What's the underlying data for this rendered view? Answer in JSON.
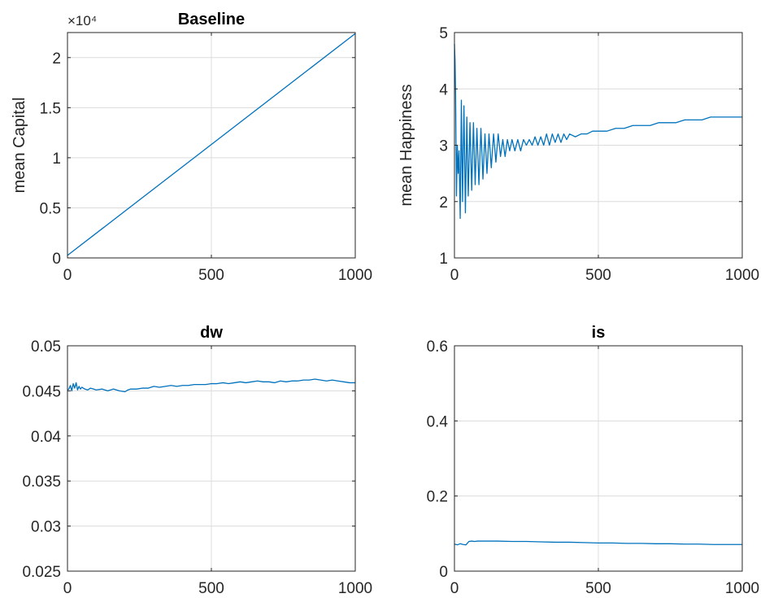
{
  "figure": {
    "background": "#ffffff",
    "line_color": "#0072bd",
    "grid_color": "#dcdcdc",
    "axis_color": "#262626"
  },
  "chart_data": [
    {
      "type": "line",
      "title": "Baseline",
      "xlabel": "",
      "ylabel": "mean Capital",
      "xlim": [
        0,
        1000
      ],
      "ylim": [
        0,
        22500
      ],
      "xticks": [
        0,
        500,
        1000
      ],
      "xtick_labels": [
        "0",
        "500",
        "1000"
      ],
      "yticks": [
        0,
        5000,
        10000,
        15000,
        20000
      ],
      "ytick_labels": [
        "0",
        "0.5",
        "1",
        "1.5",
        "2"
      ],
      "y_exponent_label": "×10⁴",
      "grid": true,
      "series": [
        {
          "x": [
            0,
            1000
          ],
          "y": [
            250,
            22400
          ]
        }
      ]
    },
    {
      "type": "line",
      "title": "",
      "xlabel": "",
      "ylabel": "mean Happiness",
      "xlim": [
        0,
        1000
      ],
      "ylim": [
        1,
        5
      ],
      "xticks": [
        0,
        500,
        1000
      ],
      "xtick_labels": [
        "0",
        "500",
        "1000"
      ],
      "yticks": [
        1,
        2,
        3,
        4,
        5
      ],
      "ytick_labels": [
        "1",
        "2",
        "3",
        "4",
        "5"
      ],
      "grid": true,
      "series": [
        {
          "x": [
            0,
            2,
            4,
            7,
            10,
            13,
            16,
            20,
            24,
            28,
            33,
            38,
            43,
            48,
            54,
            60,
            66,
            72,
            78,
            85,
            92,
            99,
            106,
            113,
            120,
            128,
            136,
            144,
            152,
            160,
            168,
            176,
            184,
            192,
            200,
            210,
            220,
            230,
            240,
            250,
            260,
            270,
            280,
            290,
            300,
            310,
            320,
            330,
            340,
            350,
            360,
            370,
            380,
            390,
            400,
            420,
            440,
            460,
            480,
            500,
            530,
            560,
            590,
            620,
            650,
            680,
            710,
            740,
            770,
            800,
            830,
            860,
            890,
            920,
            950,
            980,
            1000
          ],
          "y": [
            4.8,
            4.5,
            3.9,
            2.1,
            3.0,
            2.5,
            2.9,
            1.7,
            3.8,
            2.0,
            3.7,
            1.8,
            3.5,
            2.1,
            3.4,
            2.2,
            3.4,
            2.3,
            3.3,
            2.3,
            3.3,
            2.4,
            3.2,
            2.5,
            3.2,
            2.6,
            3.2,
            2.7,
            3.2,
            2.8,
            3.1,
            2.8,
            3.1,
            2.9,
            3.1,
            2.9,
            3.1,
            2.9,
            3.1,
            3.0,
            3.1,
            3.0,
            3.15,
            3.0,
            3.15,
            3.0,
            3.2,
            3.0,
            3.2,
            3.05,
            3.2,
            3.05,
            3.2,
            3.1,
            3.2,
            3.15,
            3.2,
            3.2,
            3.25,
            3.25,
            3.25,
            3.3,
            3.3,
            3.35,
            3.35,
            3.35,
            3.4,
            3.4,
            3.4,
            3.45,
            3.45,
            3.45,
            3.5,
            3.5,
            3.5,
            3.5,
            3.5
          ]
        }
      ]
    },
    {
      "type": "line",
      "title": "dw",
      "xlabel": "",
      "ylabel": "",
      "xlim": [
        0,
        1000
      ],
      "ylim": [
        0.025,
        0.05
      ],
      "xticks": [
        0,
        500,
        1000
      ],
      "xtick_labels": [
        "0",
        "500",
        "1000"
      ],
      "yticks": [
        0.025,
        0.03,
        0.035,
        0.04,
        0.045,
        0.05
      ],
      "ytick_labels": [
        "0.025",
        "0.03",
        "0.035",
        "0.04",
        "0.045",
        "0.05"
      ],
      "grid": true,
      "series": [
        {
          "x": [
            0,
            5,
            10,
            15,
            20,
            25,
            30,
            35,
            40,
            45,
            50,
            60,
            70,
            80,
            90,
            100,
            120,
            140,
            160,
            180,
            200,
            210,
            220,
            240,
            260,
            280,
            300,
            320,
            340,
            360,
            380,
            400,
            420,
            440,
            460,
            480,
            500,
            520,
            540,
            560,
            580,
            600,
            620,
            640,
            660,
            680,
            700,
            720,
            740,
            760,
            780,
            800,
            820,
            840,
            860,
            880,
            900,
            920,
            940,
            960,
            980,
            1000
          ],
          "y": [
            0.0451,
            0.0452,
            0.0456,
            0.045,
            0.0458,
            0.0453,
            0.0459,
            0.0451,
            0.0455,
            0.0452,
            0.0454,
            0.0452,
            0.0451,
            0.0453,
            0.0452,
            0.0451,
            0.0452,
            0.045,
            0.0452,
            0.045,
            0.0449,
            0.0451,
            0.0452,
            0.0452,
            0.0453,
            0.0453,
            0.0455,
            0.0454,
            0.0455,
            0.0456,
            0.0455,
            0.0456,
            0.0456,
            0.0457,
            0.0457,
            0.0457,
            0.0458,
            0.0458,
            0.0459,
            0.0458,
            0.0459,
            0.046,
            0.0459,
            0.046,
            0.0461,
            0.046,
            0.046,
            0.0459,
            0.0461,
            0.046,
            0.0461,
            0.0461,
            0.0462,
            0.0462,
            0.0463,
            0.0462,
            0.0461,
            0.0462,
            0.0461,
            0.046,
            0.0459,
            0.0459
          ]
        }
      ]
    },
    {
      "type": "line",
      "title": "is",
      "xlabel": "",
      "ylabel": "",
      "xlim": [
        0,
        1000
      ],
      "ylim": [
        0,
        0.6
      ],
      "xticks": [
        0,
        500,
        1000
      ],
      "xtick_labels": [
        "0",
        "500",
        "1000"
      ],
      "yticks": [
        0,
        0.2,
        0.4,
        0.6
      ],
      "ytick_labels": [
        "0",
        "0.2",
        "0.4",
        "0.6"
      ],
      "grid": true,
      "series": [
        {
          "x": [
            0,
            10,
            20,
            30,
            40,
            50,
            60,
            70,
            80,
            100,
            150,
            200,
            250,
            300,
            350,
            400,
            450,
            500,
            550,
            600,
            650,
            700,
            750,
            800,
            850,
            900,
            950,
            1000
          ],
          "y": [
            0.072,
            0.07,
            0.073,
            0.071,
            0.07,
            0.079,
            0.08,
            0.079,
            0.08,
            0.08,
            0.08,
            0.079,
            0.079,
            0.078,
            0.077,
            0.077,
            0.076,
            0.075,
            0.075,
            0.074,
            0.074,
            0.073,
            0.073,
            0.072,
            0.072,
            0.071,
            0.071,
            0.071
          ]
        }
      ]
    }
  ]
}
